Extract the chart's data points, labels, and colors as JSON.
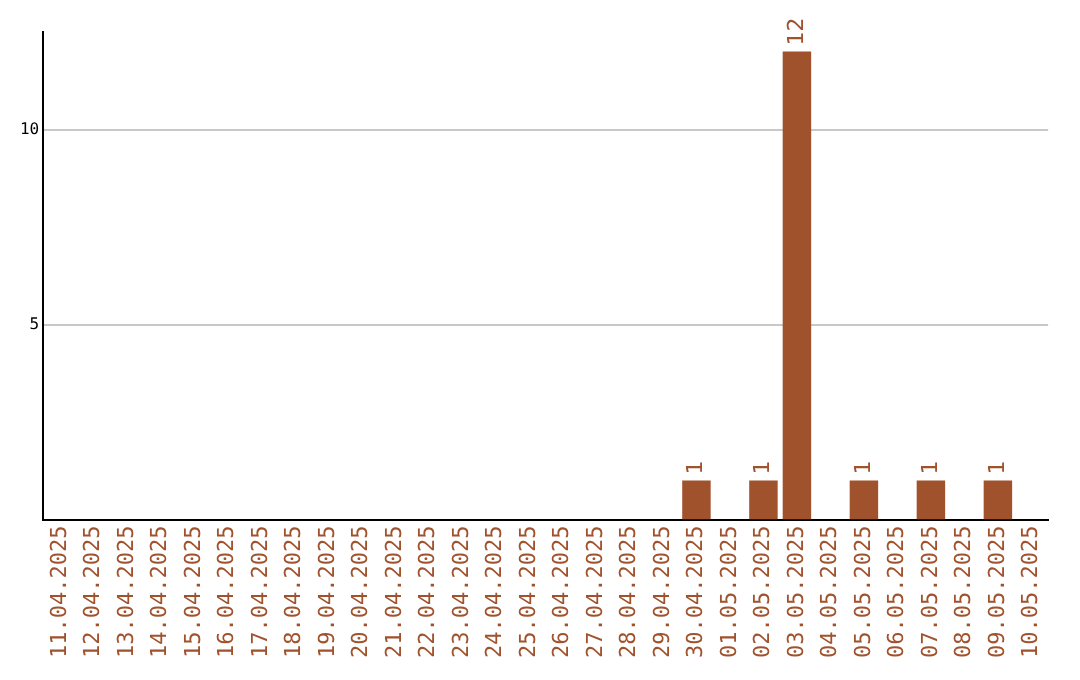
{
  "chart_data": {
    "type": "bar",
    "categories": [
      "11.04.2025",
      "12.04.2025",
      "13.04.2025",
      "14.04.2025",
      "15.04.2025",
      "16.04.2025",
      "17.04.2025",
      "18.04.2025",
      "19.04.2025",
      "20.04.2025",
      "21.04.2025",
      "22.04.2025",
      "23.04.2025",
      "24.04.2025",
      "25.04.2025",
      "26.04.2025",
      "27.04.2025",
      "28.04.2025",
      "29.04.2025",
      "30.04.2025",
      "01.05.2025",
      "02.05.2025",
      "03.05.2025",
      "04.05.2025",
      "05.05.2025",
      "06.05.2025",
      "07.05.2025",
      "08.05.2025",
      "09.05.2025",
      "10.05.2025"
    ],
    "values": [
      0,
      0,
      0,
      0,
      0,
      0,
      0,
      0,
      0,
      0,
      0,
      0,
      0,
      0,
      0,
      0,
      0,
      0,
      0,
      1,
      0,
      1,
      12,
      0,
      1,
      0,
      1,
      0,
      1,
      0
    ],
    "value_labels": [
      null,
      null,
      null,
      null,
      null,
      null,
      null,
      null,
      null,
      null,
      null,
      null,
      null,
      null,
      null,
      null,
      null,
      null,
      null,
      "1",
      null,
      "1",
      "12",
      null,
      "1",
      null,
      "1",
      null,
      "1",
      null
    ],
    "color": "#a0522d",
    "ylim": [
      0,
      12.5
    ],
    "yticks": [
      5,
      10
    ],
    "grid": "y",
    "legend": false
  }
}
